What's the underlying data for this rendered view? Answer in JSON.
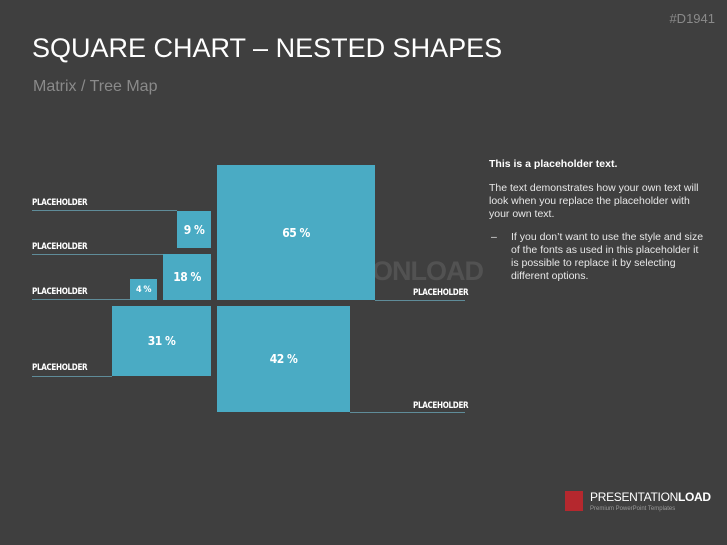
{
  "header": {
    "id": "#D1941",
    "title": "SQUARE CHART – NESTED SHAPES",
    "subtitle": "Matrix / Tree Map"
  },
  "squares": [
    {
      "label": "65 %"
    },
    {
      "label": "9 %"
    },
    {
      "label": "18 %"
    },
    {
      "label": "4 %"
    },
    {
      "label": "31 %"
    },
    {
      "label": "42 %"
    }
  ],
  "placeholders": [
    "PLACEHOLDER",
    "PLACEHOLDER",
    "PLACEHOLDER",
    "PLACEHOLDER",
    "PLACEHOLDER",
    "PLACEHOLDER"
  ],
  "watermark": "PRESENTATIONLOAD",
  "text": {
    "heading": "This is a placeholder text.",
    "body": "The text demonstrates how your own text will look when you replace the placeholder with your own text.",
    "bullet_marker": "–",
    "bullet": "If you don’t want to use the style and size of the fonts as used in this placeholder it is possible to replace it by selecting different options."
  },
  "footer": {
    "brand": "PRESENTATION",
    "brand_bold": "LOAD",
    "tagline": "Premium PowerPoint Templates"
  }
}
